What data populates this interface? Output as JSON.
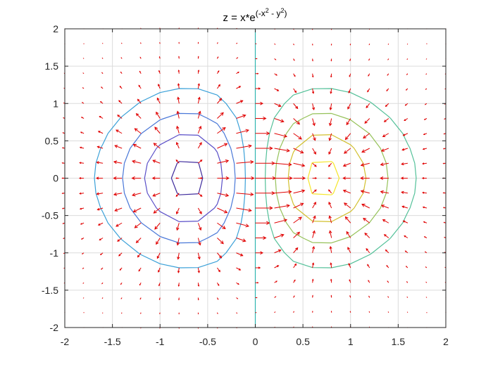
{
  "chart_data": {
    "type": "contour",
    "overlay": "quiver",
    "title": "z = x*e",
    "title_exponent": "(-x",
    "title_exponent_sup1": "2",
    "title_exponent_mid": " - y",
    "title_exponent_sup2": "2",
    "title_exponent_end": ")",
    "xlabel": "",
    "ylabel": "",
    "xlim": [
      -2,
      2
    ],
    "ylim": [
      -2,
      2
    ],
    "xticks": [
      -2,
      -1.5,
      -1,
      -0.5,
      0,
      0.5,
      1,
      1.5,
      2
    ],
    "xtick_labels": [
      "-2",
      "-1.5",
      "-1",
      "-0.5",
      "0",
      "0.5",
      "1",
      "1.5",
      "2"
    ],
    "yticks": [
      2,
      1.5,
      1,
      0.5,
      0,
      -0.5,
      -1,
      -1.5,
      -2
    ],
    "ytick_labels": [
      "2",
      "1.5",
      "1",
      "0.5",
      "0",
      "-0.5",
      "-1",
      "-1.5",
      "-2"
    ],
    "grid": true,
    "function": "x*exp(-x^2 - y^2)",
    "contour_levels": [
      -0.4,
      -0.3,
      -0.2,
      -0.1,
      0,
      0.1,
      0.2,
      0.3,
      0.4
    ],
    "contour_colors": [
      "#3d2a9c",
      "#5a4fc8",
      "#4a78d8",
      "#3aa0d8",
      "#2fb5b0",
      "#52c098",
      "#96c25a",
      "#d2c02e",
      "#f5e62a"
    ],
    "quiver_color": "#e00000",
    "quiver_grid_step": 0.2,
    "zero_line_color": "#2fb5b0"
  }
}
